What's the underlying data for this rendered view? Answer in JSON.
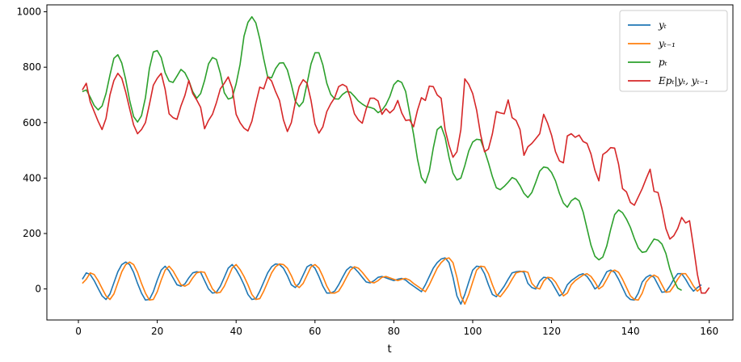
{
  "chart_data": {
    "type": "line",
    "title": "",
    "xlabel": "t",
    "ylabel": "",
    "xlim": [
      -8,
      166
    ],
    "ylim": [
      -112,
      1025
    ],
    "xticks": [
      0,
      20,
      40,
      60,
      80,
      100,
      120,
      140,
      160
    ],
    "yticks": [
      0,
      200,
      400,
      600,
      800,
      1000
    ],
    "grid": false,
    "legend_position": "top-right",
    "series": [
      {
        "name": "y_t",
        "legend_label": "yₜ",
        "color": "#1f77b4",
        "x_start": 1,
        "values": [
          35,
          58,
          52,
          30,
          2,
          -25,
          -38,
          -18,
          22,
          62,
          88,
          97,
          88,
          60,
          20,
          -15,
          -40,
          -38,
          -10,
          32,
          68,
          82,
          65,
          40,
          15,
          10,
          18,
          40,
          58,
          62,
          60,
          30,
          0,
          -15,
          -12,
          10,
          42,
          75,
          88,
          70,
          45,
          15,
          -20,
          -38,
          -35,
          -8,
          25,
          58,
          80,
          90,
          88,
          75,
          48,
          15,
          5,
          20,
          50,
          80,
          88,
          75,
          45,
          10,
          -15,
          -15,
          -8,
          15,
          42,
          68,
          80,
          75,
          60,
          42,
          25,
          22,
          30,
          42,
          45,
          40,
          35,
          30,
          35,
          38,
          32,
          20,
          10,
          0,
          -10,
          15,
          45,
          75,
          95,
          108,
          112,
          95,
          42,
          -25,
          -55,
          -20,
          25,
          68,
          82,
          80,
          55,
          15,
          -20,
          -28,
          -10,
          10,
          35,
          58,
          62,
          64,
          60,
          20,
          5,
          0,
          28,
          42,
          40,
          25,
          0,
          -25,
          -15,
          15,
          30,
          40,
          50,
          55,
          45,
          25,
          0,
          10,
          35,
          62,
          68,
          60,
          35,
          5,
          -25,
          -38,
          -40,
          -15,
          25,
          42,
          50,
          42,
          15,
          -12,
          -10,
          10,
          35,
          55,
          55,
          35,
          10,
          -8,
          5,
          15
        ]
      },
      {
        "name": "y_{t-1}",
        "legend_label": "yₜ₋₁",
        "color": "#ff7f0e",
        "x_start": 1,
        "values": [
          20,
          35,
          58,
          52,
          30,
          2,
          -25,
          -38,
          -18,
          22,
          62,
          88,
          97,
          88,
          60,
          20,
          -15,
          -40,
          -38,
          -10,
          32,
          68,
          82,
          65,
          40,
          15,
          10,
          18,
          40,
          58,
          62,
          60,
          30,
          0,
          -15,
          -12,
          10,
          42,
          75,
          88,
          70,
          45,
          15,
          -20,
          -38,
          -35,
          -8,
          25,
          58,
          80,
          90,
          88,
          75,
          48,
          15,
          5,
          20,
          50,
          80,
          88,
          75,
          45,
          10,
          -15,
          -15,
          -8,
          15,
          42,
          68,
          80,
          75,
          60,
          42,
          25,
          22,
          30,
          42,
          45,
          40,
          35,
          30,
          35,
          38,
          32,
          20,
          10,
          0,
          -10,
          15,
          45,
          75,
          95,
          108,
          112,
          95,
          42,
          -25,
          -55,
          -20,
          25,
          68,
          82,
          80,
          55,
          15,
          -20,
          -28,
          -10,
          10,
          35,
          58,
          62,
          64,
          60,
          20,
          5,
          0,
          28,
          42,
          40,
          25,
          0,
          -25,
          -15,
          15,
          30,
          40,
          50,
          55,
          45,
          25,
          0,
          10,
          35,
          62,
          68,
          60,
          35,
          5,
          -25,
          -38,
          -40,
          -15,
          25,
          42,
          50,
          42,
          15,
          -12,
          -10,
          10,
          35,
          55,
          55,
          35,
          10,
          -8,
          5
        ]
      },
      {
        "name": "p_t",
        "legend_label": "pₜ",
        "color": "#2ca02c",
        "x_start": 1,
        "values": [
          712,
          718,
          692,
          662,
          646,
          660,
          705,
          772,
          832,
          845,
          815,
          755,
          680,
          622,
          602,
          625,
          690,
          795,
          855,
          860,
          835,
          780,
          750,
          745,
          768,
          792,
          780,
          752,
          712,
          688,
          705,
          752,
          812,
          835,
          828,
          778,
          708,
          685,
          690,
          740,
          810,
          912,
          962,
          982,
          960,
          902,
          830,
          765,
          762,
          795,
          815,
          816,
          790,
          738,
          678,
          658,
          675,
          742,
          812,
          852,
          852,
          808,
          742,
          702,
          686,
          685,
          702,
          712,
          710,
          695,
          678,
          667,
          658,
          655,
          650,
          636,
          645,
          665,
          695,
          737,
          752,
          745,
          712,
          635,
          558,
          468,
          402,
          382,
          425,
          508,
          575,
          587,
          547,
          475,
          418,
          393,
          400,
          445,
          498,
          530,
          540,
          538,
          500,
          455,
          405,
          365,
          358,
          370,
          385,
          402,
          395,
          373,
          345,
          330,
          348,
          385,
          425,
          440,
          437,
          420,
          390,
          345,
          310,
          295,
          318,
          328,
          318,
          278,
          218,
          158,
          118,
          105,
          115,
          155,
          215,
          268,
          285,
          275,
          252,
          222,
          182,
          148,
          132,
          135,
          158,
          180,
          176,
          162,
          128,
          72,
          32,
          3,
          -5
        ]
      },
      {
        "name": "Ep_t|y_t, y_{t-1}",
        "legend_label": "Epₜ|yₜ, yₜ₋₁",
        "color": "#d62728",
        "x_start": 1,
        "values": [
          718,
          742,
          675,
          640,
          605,
          575,
          615,
          700,
          752,
          778,
          760,
          710,
          650,
          592,
          560,
          575,
          600,
          665,
          735,
          760,
          778,
          720,
          632,
          618,
          612,
          660,
          698,
          752,
          705,
          682,
          655,
          578,
          608,
          630,
          672,
          722,
          742,
          765,
          725,
          630,
          600,
          580,
          570,
          605,
          670,
          728,
          722,
          765,
          750,
          712,
          680,
          610,
          568,
          600,
          672,
          730,
          755,
          742,
          680,
          595,
          562,
          585,
          640,
          668,
          690,
          730,
          738,
          730,
          688,
          632,
          610,
          598,
          650,
          688,
          688,
          678,
          630,
          650,
          635,
          648,
          680,
          635,
          608,
          610,
          585,
          645,
          690,
          680,
          732,
          730,
          700,
          688,
          575,
          518,
          475,
          495,
          575,
          758,
          738,
          705,
          645,
          558,
          495,
          505,
          560,
          640,
          635,
          632,
          682,
          618,
          608,
          575,
          482,
          513,
          525,
          542,
          560,
          630,
          598,
          555,
          495,
          462,
          455,
          552,
          560,
          547,
          555,
          532,
          525,
          487,
          428,
          390,
          485,
          495,
          510,
          508,
          450,
          362,
          350,
          312,
          302,
          332,
          362,
          398,
          432,
          352,
          348,
          290,
          218,
          180,
          192,
          218,
          258,
          238,
          246,
          152,
          52,
          -15,
          -15,
          5
        ]
      }
    ]
  }
}
